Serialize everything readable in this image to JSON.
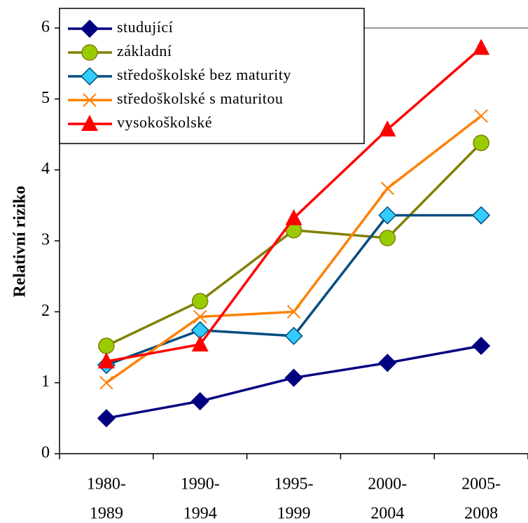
{
  "chart_data": {
    "type": "line",
    "y_label": "Relativní riziko",
    "categories": [
      [
        "1980-",
        "1989"
      ],
      [
        "1990-",
        "1994"
      ],
      [
        "1995-",
        "1999"
      ],
      [
        "2000-",
        "2004"
      ],
      [
        "2005-",
        "2008"
      ]
    ],
    "series": [
      {
        "name": "studující",
        "color": "#000080",
        "marker": "diamond",
        "marker_color": "#000080",
        "values": [
          0.5,
          0.74,
          1.07,
          1.28,
          1.52
        ]
      },
      {
        "name": "základní",
        "color": "#808000",
        "marker": "circle",
        "marker_color": "#99cc00",
        "values": [
          1.52,
          2.15,
          3.15,
          3.04,
          4.38
        ]
      },
      {
        "name": "středoškolské bez maturity",
        "color": "#004d80",
        "marker": "diamond",
        "marker_color": "#33ccff",
        "values": [
          1.25,
          1.74,
          1.66,
          3.36,
          3.36
        ]
      },
      {
        "name": "středoškolské s maturitou",
        "color": "#ff8000",
        "marker": "x",
        "marker_color": "#ff8000",
        "values": [
          1.0,
          1.93,
          2.0,
          3.74,
          4.76
        ]
      },
      {
        "name": "vysokoškolské",
        "color": "#ff0000",
        "marker": "triangle",
        "marker_color": "#ff0000",
        "values": [
          1.3,
          1.54,
          3.32,
          4.57,
          5.72
        ]
      }
    ],
    "ylim": [
      0,
      6
    ],
    "yticks": [
      0,
      1,
      2,
      3,
      4,
      5,
      6
    ],
    "grid": false,
    "legend": "upper left"
  }
}
